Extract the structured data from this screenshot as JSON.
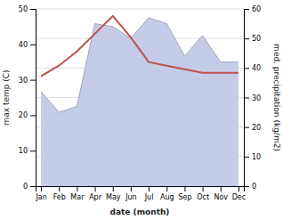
{
  "chart_data": {
    "type": "line",
    "categories": [
      "Jan",
      "Feb",
      "Mar",
      "Apr",
      "May",
      "Jun",
      "Jul",
      "Aug",
      "Sep",
      "Oct",
      "Nov",
      "Dec"
    ],
    "series": [
      {
        "type": "area",
        "axis": "y2",
        "color": "#c5cce8",
        "values": [
          32,
          25,
          27,
          55,
          54,
          50,
          57,
          55,
          44,
          51,
          42,
          42
        ]
      },
      {
        "type": "line",
        "color": "#c0504d",
        "values": [
          31,
          34,
          38,
          43,
          48,
          42,
          35,
          34,
          33,
          32,
          32,
          32
        ]
      }
    ],
    "xlabel": "date (month)",
    "ylabel": "max temp (C)",
    "y2label": "med. precipitation (kg/m2)",
    "ylim": [
      0,
      50
    ],
    "yticks": [
      0,
      10,
      20,
      30,
      40,
      50
    ],
    "y2lim": [
      0,
      60
    ],
    "y2ticks": [
      0,
      10,
      20,
      30,
      40,
      50,
      60
    ],
    "grid": true
  }
}
